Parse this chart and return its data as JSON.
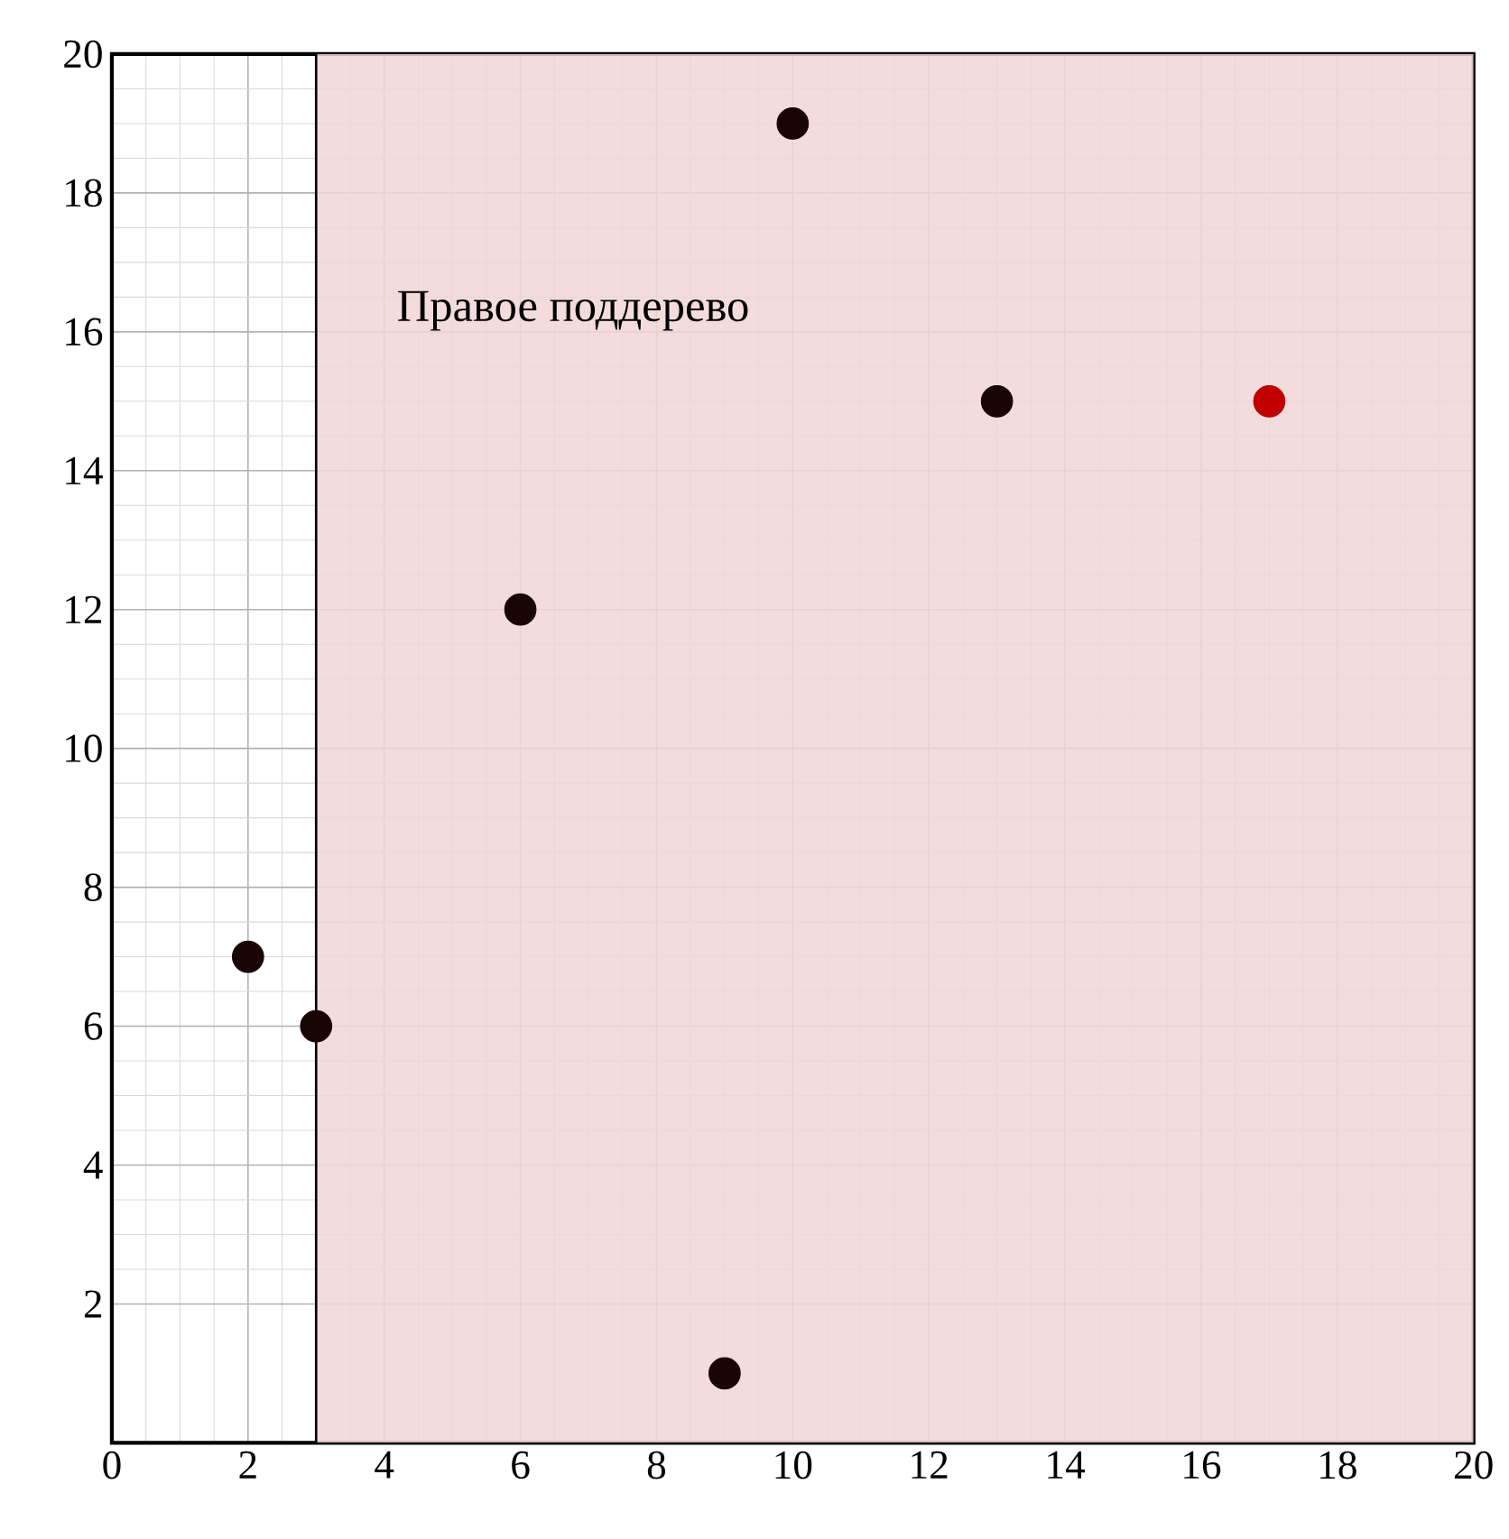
{
  "chart_data": {
    "type": "scatter",
    "series": [
      {
        "color": "#1a0505",
        "x": [
          2,
          3,
          6,
          9,
          10,
          13
        ],
        "values": [
          7,
          6,
          12,
          1,
          19,
          15
        ]
      },
      {
        "color": "#c00000",
        "x": [
          17
        ],
        "values": [
          15
        ]
      }
    ],
    "xlim": [
      0,
      20
    ],
    "ylim": [
      0,
      20
    ],
    "xticks": [
      0,
      2,
      4,
      6,
      8,
      10,
      12,
      14,
      16,
      18,
      20
    ],
    "yticks": [
      2,
      4,
      6,
      8,
      10,
      12,
      14,
      16,
      18,
      20
    ],
    "grid": true,
    "bands": [
      {
        "axis": "x",
        "from": 3,
        "to": 20,
        "label": "Правое поддерево",
        "color": "#f3d6d6"
      }
    ],
    "ref_lines": [
      {
        "axis": "x",
        "value": 3,
        "color": "#000000"
      }
    ]
  }
}
